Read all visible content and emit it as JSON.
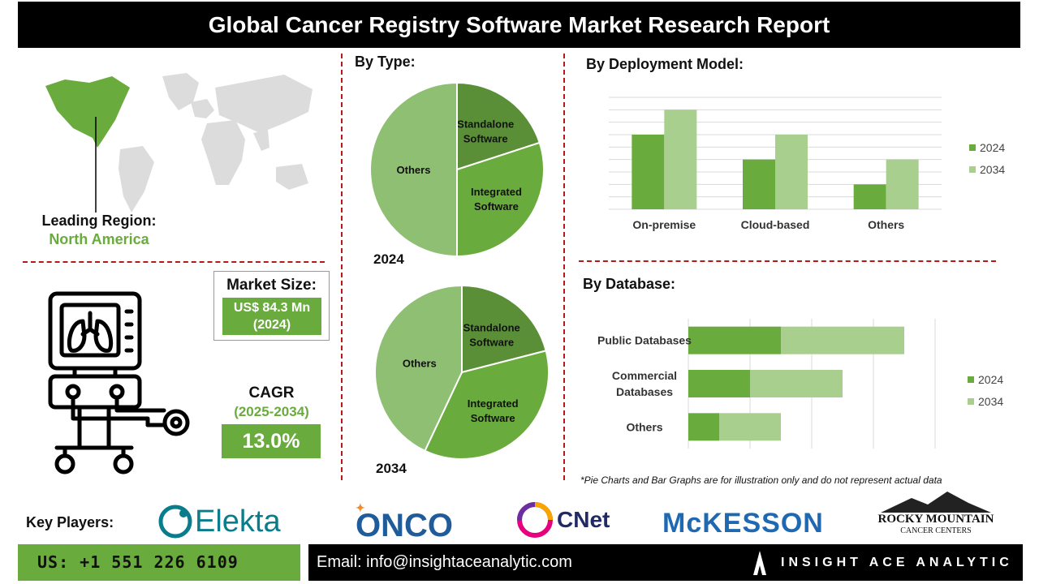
{
  "title": "Global Cancer Registry Software Market Research Report",
  "region": {
    "label": "Leading Region:",
    "value": "North America"
  },
  "market_size": {
    "label": "Market Size:",
    "value_line1": "US$ 84.3 Mn",
    "value_line2": "(2024)"
  },
  "cagr": {
    "label": "CAGR",
    "years": "(2025-2034)",
    "value": "13.0%"
  },
  "by_type_title": "By Type:",
  "by_deployment_title": "By Deployment Model:",
  "by_database_title": "By Database:",
  "footnote": "*Pie Charts and Bar Graphs are for illustration only and do not represent actual data",
  "key_players_label": "Key Players:",
  "key_players": {
    "elekta": "Elekta",
    "onco": "ONCO",
    "cnet": "CNet",
    "mckesson": "McKESSON",
    "rocky_line1": "ROCKY MOUNTAIN",
    "rocky_line2": "CANCER CENTERS"
  },
  "contact": {
    "phone": "US: +1 551 226 6109",
    "email": "Email: info@insightaceanalytic.com"
  },
  "brand": "INSIGHT ACE ANALYTIC",
  "colors": {
    "dark_green": "#5a8f38",
    "mid_green": "#6aab3e",
    "light_green": "#a8cf8e",
    "pie_light": "#8fbf72",
    "accent_red": "#b31b1b"
  },
  "chart_data": [
    {
      "type": "pie",
      "title": "2024",
      "slices": [
        {
          "label": "Standalone Software",
          "value": 20
        },
        {
          "label": "Integrated Software",
          "value": 30
        },
        {
          "label": "Others",
          "value": 50
        }
      ]
    },
    {
      "type": "pie",
      "title": "2034",
      "slices": [
        {
          "label": "Standalone Software",
          "value": 21
        },
        {
          "label": "Integrated Software",
          "value": 36
        },
        {
          "label": "Others",
          "value": 43
        }
      ]
    },
    {
      "type": "bar",
      "orientation": "vertical",
      "categories": [
        "On-premise",
        "Cloud-based",
        "Others"
      ],
      "series": [
        {
          "name": "2024",
          "values": [
            3,
            2,
            1
          ]
        },
        {
          "name": "2034",
          "values": [
            4,
            3,
            2
          ]
        }
      ],
      "ylim": [
        0,
        4.5
      ],
      "grid": true,
      "legend": "right"
    },
    {
      "type": "bar",
      "orientation": "horizontal",
      "stacked": true,
      "categories": [
        "Public Databases",
        "Commercial Databases",
        "Others"
      ],
      "series": [
        {
          "name": "2024",
          "values": [
            3,
            2,
            1
          ]
        },
        {
          "name": "2034",
          "values": [
            4,
            3,
            2
          ]
        }
      ],
      "xlim": [
        0,
        8
      ],
      "grid": true,
      "legend": "right"
    }
  ]
}
